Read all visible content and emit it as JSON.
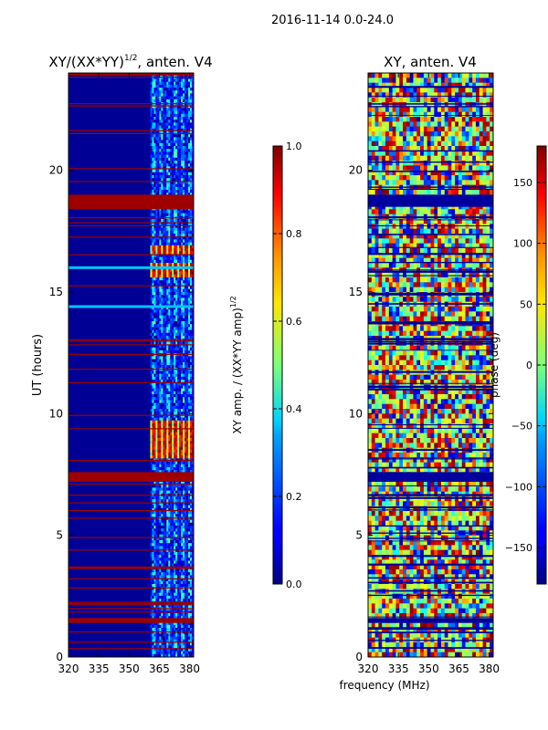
{
  "header": {
    "title": "2016-11-14 0.0-24.0"
  },
  "chart_data": [
    {
      "type": "heatmap",
      "title_main": "XY/(XX*YY)",
      "title_sup": "1/2",
      "title_tail": ", anten. V4",
      "ylabel": "UT (hours)",
      "xlabel": "",
      "xlim": [
        320,
        382
      ],
      "ylim": [
        0,
        24
      ],
      "xticks": [
        320,
        335,
        350,
        365,
        380
      ],
      "yticks": [
        0,
        5,
        10,
        15,
        20
      ],
      "colorbar": {
        "label_main": "XY amp. / (XX*YY amp)",
        "label_sup": "1/2",
        "range": [
          0.0,
          1.0
        ],
        "ticks": [
          "0.0",
          "0.2",
          "0.4",
          "0.6",
          "0.8",
          "1.0"
        ],
        "colormap": "jet"
      },
      "flagged_bands_ut": [
        [
          1.4,
          1.6
        ],
        [
          7.2,
          7.6
        ],
        [
          18.4,
          19.0
        ],
        [
          23.9,
          24.0
        ]
      ],
      "bright_regions_ut": [
        [
          8.2,
          9.7
        ],
        [
          15.6,
          16.2
        ],
        [
          16.6,
          16.9
        ]
      ]
    },
    {
      "type": "heatmap",
      "title": "XY, anten. V4",
      "ylabel": "",
      "xlabel": "frequency (MHz)",
      "xlim": [
        320,
        382
      ],
      "ylim": [
        0,
        24
      ],
      "xticks": [
        320,
        335,
        350,
        365,
        380
      ],
      "yticks": [
        0,
        5,
        10,
        15,
        20
      ],
      "colorbar": {
        "label": "phase (deg)",
        "range": [
          -180,
          180
        ],
        "ticks": [
          "-150",
          "-100",
          "-50",
          "0",
          "50",
          "100",
          "150"
        ],
        "colormap": "jet"
      }
    }
  ],
  "colors": {
    "jet_dark_blue": "#00007f",
    "jet_blue": "#0000ff",
    "jet_cyan": "#00ffff",
    "jet_yellow": "#ffff00",
    "jet_red": "#ff0000",
    "jet_dark_red": "#7f0000"
  }
}
